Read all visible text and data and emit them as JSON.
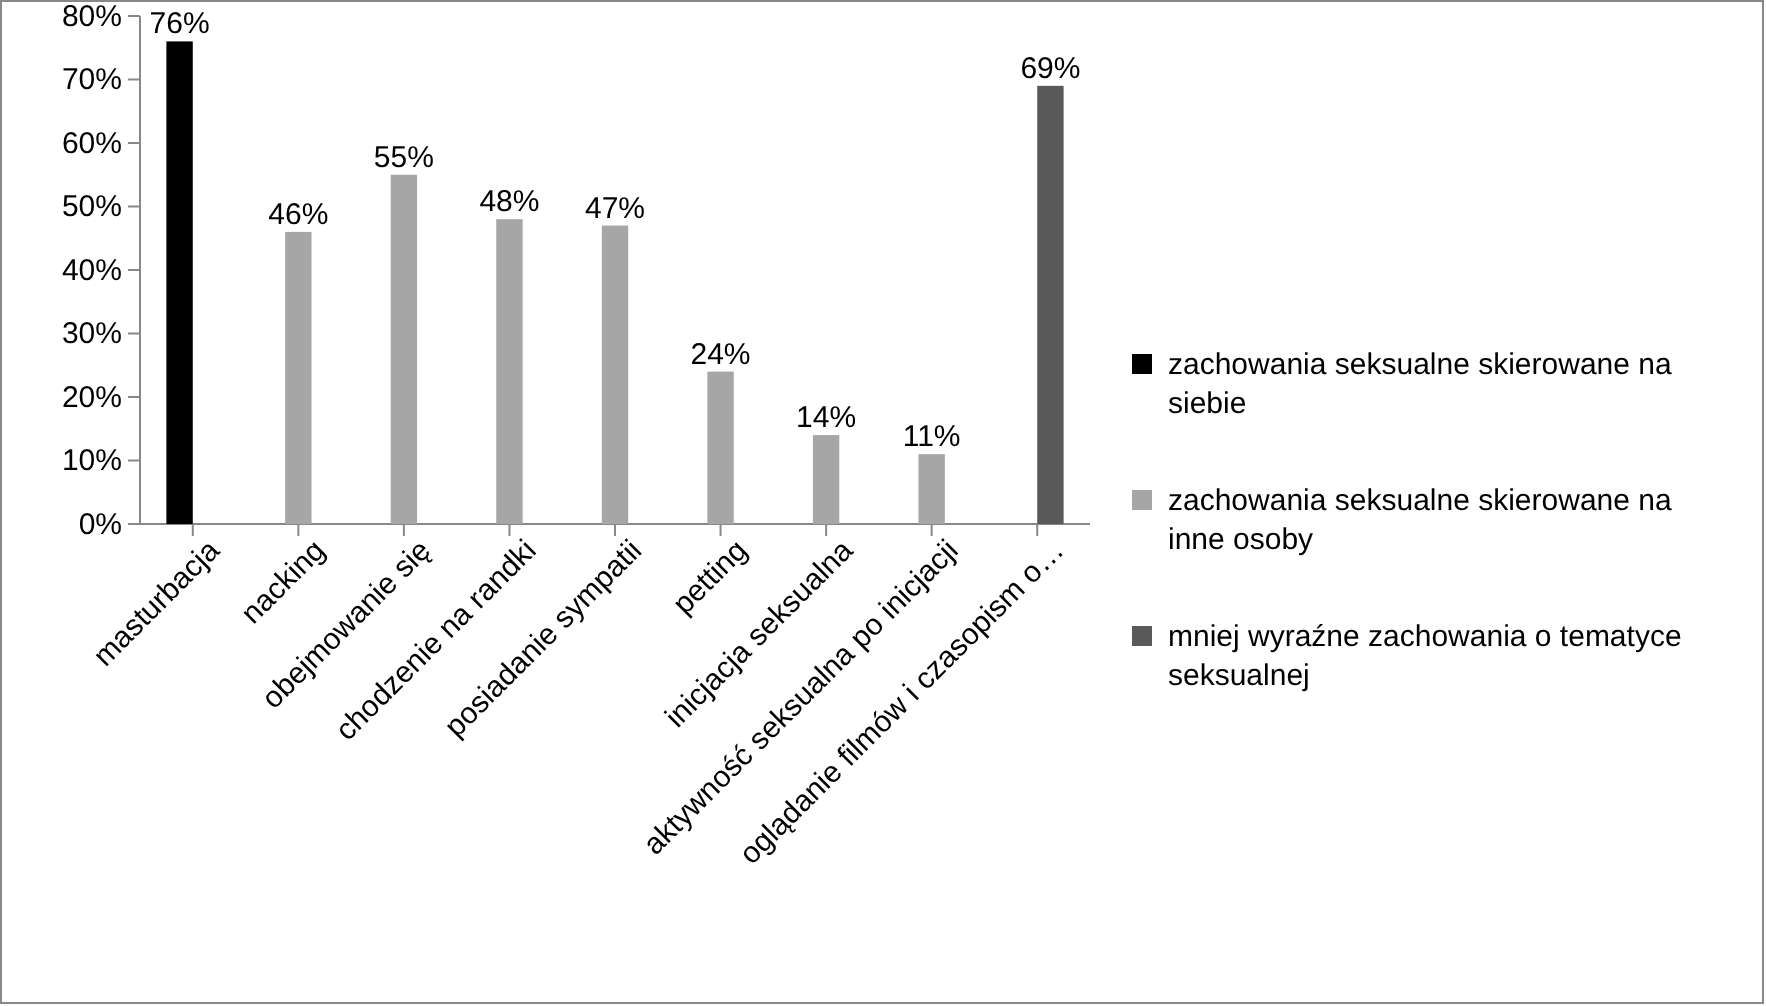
{
  "chart_data": {
    "type": "bar",
    "categories": [
      "masturbacja",
      "nacking",
      "obejmowanie się",
      "chodzenie na randki",
      "posiadanie sympatii",
      "petting",
      "inicjacja seksualna",
      "aktywność seksualna po inicjacji",
      "oglądanie filmów i czasopism o…"
    ],
    "ylim": [
      0,
      80
    ],
    "yticks": [
      {
        "value": 0,
        "label": "0%"
      },
      {
        "value": 10,
        "label": "10%"
      },
      {
        "value": 20,
        "label": "20%"
      },
      {
        "value": 30,
        "label": "30%"
      },
      {
        "value": 40,
        "label": "40%"
      },
      {
        "value": 50,
        "label": "50%"
      },
      {
        "value": 60,
        "label": "60%"
      },
      {
        "value": 70,
        "label": "70%"
      },
      {
        "value": 80,
        "label": "80%"
      }
    ],
    "grid": false,
    "legend": "right",
    "series": [
      {
        "name": "zachowania seksualne skierowane na siebie",
        "color": "#000000",
        "values": [
          76,
          null,
          null,
          null,
          null,
          null,
          null,
          null,
          null
        ],
        "value_labels": [
          "76%",
          null,
          null,
          null,
          null,
          null,
          null,
          null,
          null
        ]
      },
      {
        "name": "zachowania seksualne skierowane na inne osoby",
        "color": "#a6a6a6",
        "values": [
          null,
          46,
          55,
          48,
          47,
          24,
          14,
          11,
          null
        ],
        "value_labels": [
          null,
          "46%",
          "55%",
          "48%",
          "47%",
          "24%",
          "14%",
          "11%",
          null
        ]
      },
      {
        "name": "mniej wyraźne zachowania o tematyce seksualnej",
        "color": "#595959",
        "values": [
          null,
          null,
          null,
          null,
          null,
          null,
          null,
          null,
          69
        ],
        "value_labels": [
          null,
          null,
          null,
          null,
          null,
          null,
          null,
          null,
          "69%"
        ]
      }
    ]
  }
}
